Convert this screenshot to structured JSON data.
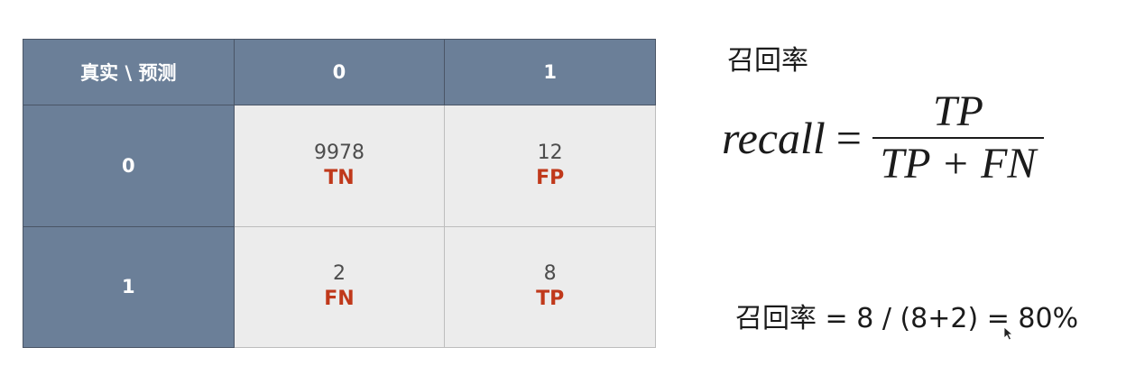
{
  "matrix": {
    "corner_label": "真实 \\ 预测",
    "col_headers": [
      "0",
      "1"
    ],
    "row_headers": [
      "0",
      "1"
    ],
    "cells": [
      [
        {
          "value": "9978",
          "code": "TN"
        },
        {
          "value": "12",
          "code": "FP"
        }
      ],
      [
        {
          "value": "2",
          "code": "FN"
        },
        {
          "value": "8",
          "code": "TP"
        }
      ]
    ]
  },
  "recall": {
    "title": "召回率",
    "formula_lhs": "recall",
    "formula_eq": "=",
    "numerator": "TP",
    "denominator": "TP + FN",
    "calculation": "召回率 = 8 / (8+2) = 80%"
  },
  "colors": {
    "header_bg": "#6b7f98",
    "cell_bg": "#ececec",
    "code_red": "#c0391b"
  }
}
